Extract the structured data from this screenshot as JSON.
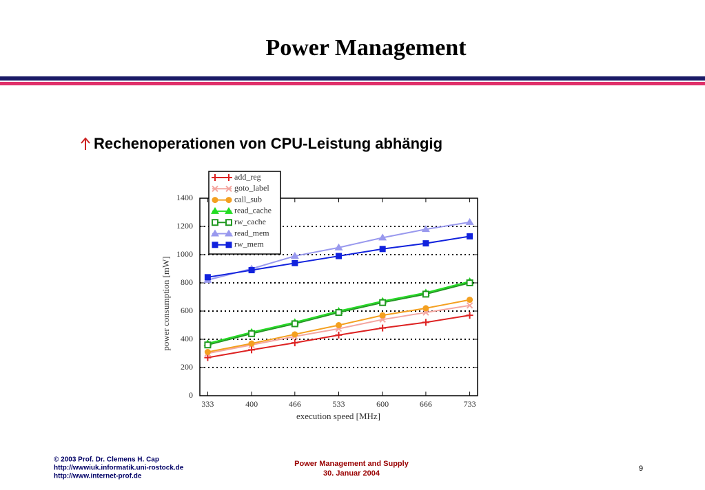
{
  "slide": {
    "title": "Power Management",
    "bullet": "Rechenoperationen von CPU-Leistung abhängig",
    "footer_left": [
      "© 2003 Prof. Dr. Clemens H. Cap",
      "http://wwwiuk.informatik.uni-rostock.de",
      "http://www.internet-prof.de"
    ],
    "footer_center": [
      "Power Management and Supply",
      "30. Januar 2004"
    ],
    "page_number": "9"
  },
  "chart_data": {
    "type": "line",
    "x_label": "execution speed [MHz]",
    "y_label": "power consumption [mW]",
    "x": [
      333,
      400,
      466,
      533,
      600,
      666,
      733
    ],
    "xlim": [
      321,
      745
    ],
    "xticks": [
      333,
      400,
      466,
      533,
      600,
      666,
      733
    ],
    "ylim": [
      0,
      1400
    ],
    "yticks": [
      0,
      200,
      400,
      600,
      800,
      1000,
      1200,
      1400
    ],
    "grid": true,
    "legend": "top-left",
    "series": [
      {
        "name": "add_reg",
        "color": "#dd2222",
        "marker": "plus",
        "values": [
          270,
          325,
          375,
          430,
          480,
          520,
          570
        ]
      },
      {
        "name": "goto_label",
        "color": "#f4a6a0",
        "marker": "cross",
        "values": [
          300,
          360,
          420,
          475,
          540,
          590,
          640
        ]
      },
      {
        "name": "call_sub",
        "color": "#f4a020",
        "marker": "circle",
        "values": [
          310,
          370,
          435,
          500,
          570,
          620,
          680
        ]
      },
      {
        "name": "read_cache",
        "color": "#22dd22",
        "marker": "triangle",
        "values": [
          370,
          450,
          520,
          600,
          670,
          730,
          810
        ]
      },
      {
        "name": "rw_cache",
        "color": "#229922",
        "marker": "open-square",
        "values": [
          360,
          440,
          510,
          590,
          660,
          720,
          800
        ]
      },
      {
        "name": "read_mem",
        "color": "#9999ee",
        "marker": "triangle",
        "values": [
          820,
          900,
          990,
          1050,
          1120,
          1180,
          1230
        ]
      },
      {
        "name": "rw_mem",
        "color": "#1122dd",
        "marker": "square",
        "values": [
          840,
          890,
          940,
          990,
          1040,
          1080,
          1130
        ]
      }
    ]
  }
}
